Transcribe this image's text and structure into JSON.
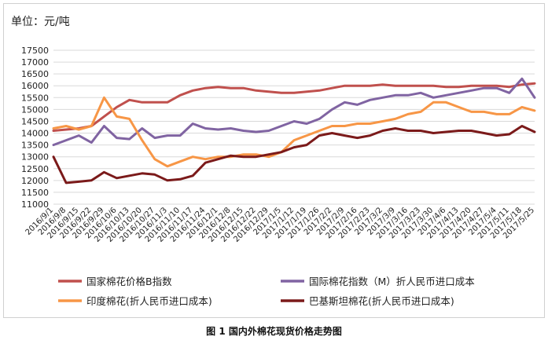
{
  "unit_label": "单位：元/吨",
  "caption": "图 1  国内外棉花现货价格走势图",
  "colors": {
    "cc_index": "#c0504d",
    "intl_index": "#8064a2",
    "india": "#f79646",
    "pakistan": "#7b1a1a",
    "grid": "#d9d9d9"
  },
  "chart_data": {
    "type": "line",
    "ylim": [
      11000,
      17500
    ],
    "yticks": [
      11000,
      11500,
      12000,
      12500,
      13000,
      13500,
      14000,
      14500,
      15000,
      15500,
      16000,
      16500,
      17000,
      17500
    ],
    "grid": true,
    "legend_position": "bottom",
    "x": [
      "2016/9/1",
      "2016/9/8",
      "2016/9/15",
      "2016/9/22",
      "2016/9/29",
      "2016/10/6",
      "2016/10/13",
      "2016/10/20",
      "2016/10/27",
      "2016/11/3",
      "2016/11/10",
      "2016/11/17",
      "2016/11/24",
      "2016/12/1",
      "2016/12/8",
      "2016/12/15",
      "2016/12/22",
      "2016/12/29",
      "2017/1/5",
      "2017/1/12",
      "2017/1/19",
      "2017/1/26",
      "2017/2/2",
      "2017/2/9",
      "2017/2/16",
      "2017/2/23",
      "2017/3/2",
      "2017/3/9",
      "2017/3/16",
      "2017/3/23",
      "2017/3/30",
      "2017/4/6",
      "2017/4/13",
      "2017/4/20",
      "2017/4/27",
      "2017/5/4",
      "2017/5/11",
      "2017/5/18",
      "2017/5/25"
    ],
    "series": [
      {
        "name": "国家棉花价格B指数",
        "color_key": "cc_index",
        "values": [
          14100,
          14150,
          14200,
          14300,
          14700,
          15100,
          15400,
          15300,
          15300,
          15300,
          15600,
          15800,
          15900,
          15950,
          15900,
          15900,
          15800,
          15750,
          15700,
          15700,
          15750,
          15800,
          15900,
          16000,
          16000,
          16000,
          16050,
          16000,
          16000,
          16000,
          16000,
          15950,
          15950,
          16000,
          16000,
          16000,
          15950,
          16050,
          16100
        ]
      },
      {
        "name": "国际棉花指数（M）折人民币进口成本",
        "color_key": "intl_index",
        "values": [
          13500,
          13700,
          13900,
          13600,
          14300,
          13800,
          13750,
          14200,
          13800,
          13900,
          13900,
          14400,
          14200,
          14150,
          14200,
          14100,
          14050,
          14100,
          14300,
          14500,
          14400,
          14600,
          15000,
          15300,
          15200,
          15400,
          15500,
          15600,
          15600,
          15700,
          15500,
          15600,
          15700,
          15800,
          15900,
          15900,
          15700,
          16300,
          15500
        ]
      },
      {
        "name": "印度棉花(折人民币进口成本)",
        "color_key": "india",
        "values": [
          14200,
          14300,
          14150,
          14300,
          15500,
          14700,
          14600,
          13700,
          12900,
          12600,
          12800,
          13000,
          12900,
          13000,
          13000,
          13100,
          13100,
          13000,
          13200,
          13700,
          13900,
          14100,
          14300,
          14300,
          14400,
          14400,
          14500,
          14600,
          14800,
          14900,
          15300,
          15300,
          15100,
          14900,
          14900,
          14800,
          14800,
          15100,
          14950
        ]
      },
      {
        "name": "巴基斯坦棉花(折人民币进口成本)",
        "color_key": "pakistan",
        "values": [
          13000,
          11900,
          11950,
          12000,
          12350,
          12100,
          12200,
          12300,
          12250,
          12000,
          12050,
          12200,
          12750,
          12900,
          13050,
          13000,
          13000,
          13100,
          13200,
          13400,
          13500,
          13900,
          14000,
          13900,
          13800,
          13900,
          14100,
          14200,
          14100,
          14100,
          14000,
          14050,
          14100,
          14100,
          14000,
          13900,
          13950,
          14300,
          14050
        ]
      }
    ]
  }
}
